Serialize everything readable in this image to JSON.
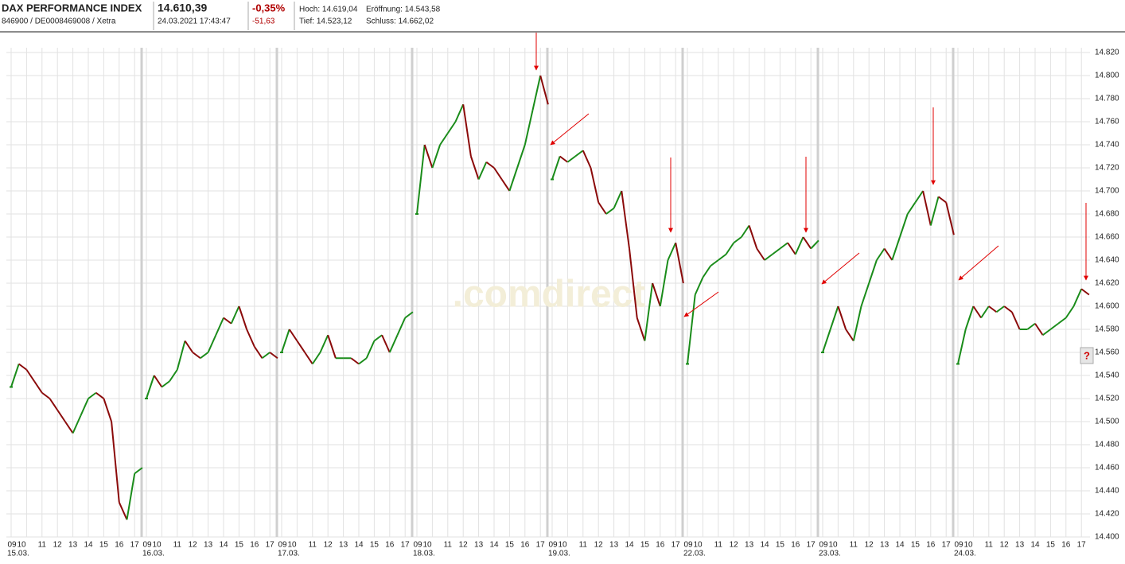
{
  "header": {
    "title": "DAX PERFORMANCE INDEX",
    "ids": "846900 / DE0008469008 / Xetra",
    "price": "14.610,39",
    "timestamp": "24.03.2021 17:43:47",
    "change_pct": "-0,35%",
    "change_abs": "-51,63",
    "high": "Hoch: 14.619,04",
    "open": "Eröffnung: 14.543,58",
    "low": "Tief: 14.523,12",
    "close": "Schluss: 14.662,02"
  },
  "chart_data": {
    "type": "line",
    "watermark": ".comdirect",
    "help_button": "?",
    "up_color": "#1a8c1a",
    "down_color": "#8b0a0a",
    "grid": true,
    "ylim": [
      14400,
      14820
    ],
    "yticks": [
      {
        "value": 14400,
        "label": "14.400"
      },
      {
        "value": 14420,
        "label": "14.420"
      },
      {
        "value": 14440,
        "label": "14.440"
      },
      {
        "value": 14460,
        "label": "14.460"
      },
      {
        "value": 14480,
        "label": "14.480"
      },
      {
        "value": 14500,
        "label": "14.500"
      },
      {
        "value": 14520,
        "label": "14.520"
      },
      {
        "value": 14540,
        "label": "14.540"
      },
      {
        "value": 14560,
        "label": "14.560"
      },
      {
        "value": 14580,
        "label": "14.580"
      },
      {
        "value": 14600,
        "label": "14.600"
      },
      {
        "value": 14620,
        "label": "14.620"
      },
      {
        "value": 14640,
        "label": "14.640"
      },
      {
        "value": 14660,
        "label": "14.660"
      },
      {
        "value": 14680,
        "label": "14.680"
      },
      {
        "value": 14700,
        "label": "14.700"
      },
      {
        "value": 14720,
        "label": "14.720"
      },
      {
        "value": 14740,
        "label": "14.740"
      },
      {
        "value": 14760,
        "label": "14.760"
      },
      {
        "value": 14780,
        "label": "14.780"
      },
      {
        "value": 14800,
        "label": "14.800"
      },
      {
        "value": 14820,
        "label": "14.820"
      }
    ],
    "hours": [
      "09",
      "10",
      "11",
      "12",
      "13",
      "14",
      "15",
      "16",
      "17"
    ],
    "days": [
      {
        "date": "15.03.",
        "values": [
          14530,
          14550,
          14545,
          14535,
          14525,
          14520,
          14510,
          14500,
          14490,
          14505,
          14520,
          14525,
          14520,
          14500,
          14430,
          14415,
          14455,
          14460
        ]
      },
      {
        "date": "16.03.",
        "values": [
          14520,
          14540,
          14530,
          14535,
          14545,
          14570,
          14560,
          14555,
          14560,
          14575,
          14590,
          14585,
          14600,
          14580,
          14565,
          14555,
          14560,
          14555
        ]
      },
      {
        "date": "17.03.",
        "values": [
          14560,
          14580,
          14570,
          14560,
          14550,
          14560,
          14575,
          14555,
          14555,
          14555,
          14550,
          14555,
          14570,
          14575,
          14560,
          14575,
          14590,
          14595
        ]
      },
      {
        "date": "18.03.",
        "values": [
          14680,
          14740,
          14720,
          14740,
          14750,
          14760,
          14775,
          14730,
          14710,
          14725,
          14720,
          14710,
          14700,
          14720,
          14740,
          14770,
          14800,
          14775
        ]
      },
      {
        "date": "19.03.",
        "values": [
          14710,
          14730,
          14725,
          14730,
          14735,
          14720,
          14690,
          14680,
          14685,
          14700,
          14650,
          14590,
          14570,
          14620,
          14600,
          14640,
          14655,
          14620
        ]
      },
      {
        "date": "22.03.",
        "values": [
          14550,
          14610,
          14625,
          14635,
          14640,
          14645,
          14655,
          14660,
          14670,
          14650,
          14640,
          14645,
          14650,
          14655,
          14645,
          14660,
          14650,
          14657
        ]
      },
      {
        "date": "23.03.",
        "values": [
          14560,
          14580,
          14600,
          14580,
          14570,
          14600,
          14620,
          14640,
          14650,
          14640,
          14660,
          14680,
          14690,
          14700,
          14670,
          14695,
          14690,
          14662
        ]
      },
      {
        "date": "24.03.",
        "values": [
          14550,
          14580,
          14600,
          14590,
          14600,
          14595,
          14600,
          14595,
          14580,
          14580,
          14585,
          14575,
          14580,
          14585,
          14590,
          14600,
          14615,
          14610
        ]
      }
    ]
  }
}
